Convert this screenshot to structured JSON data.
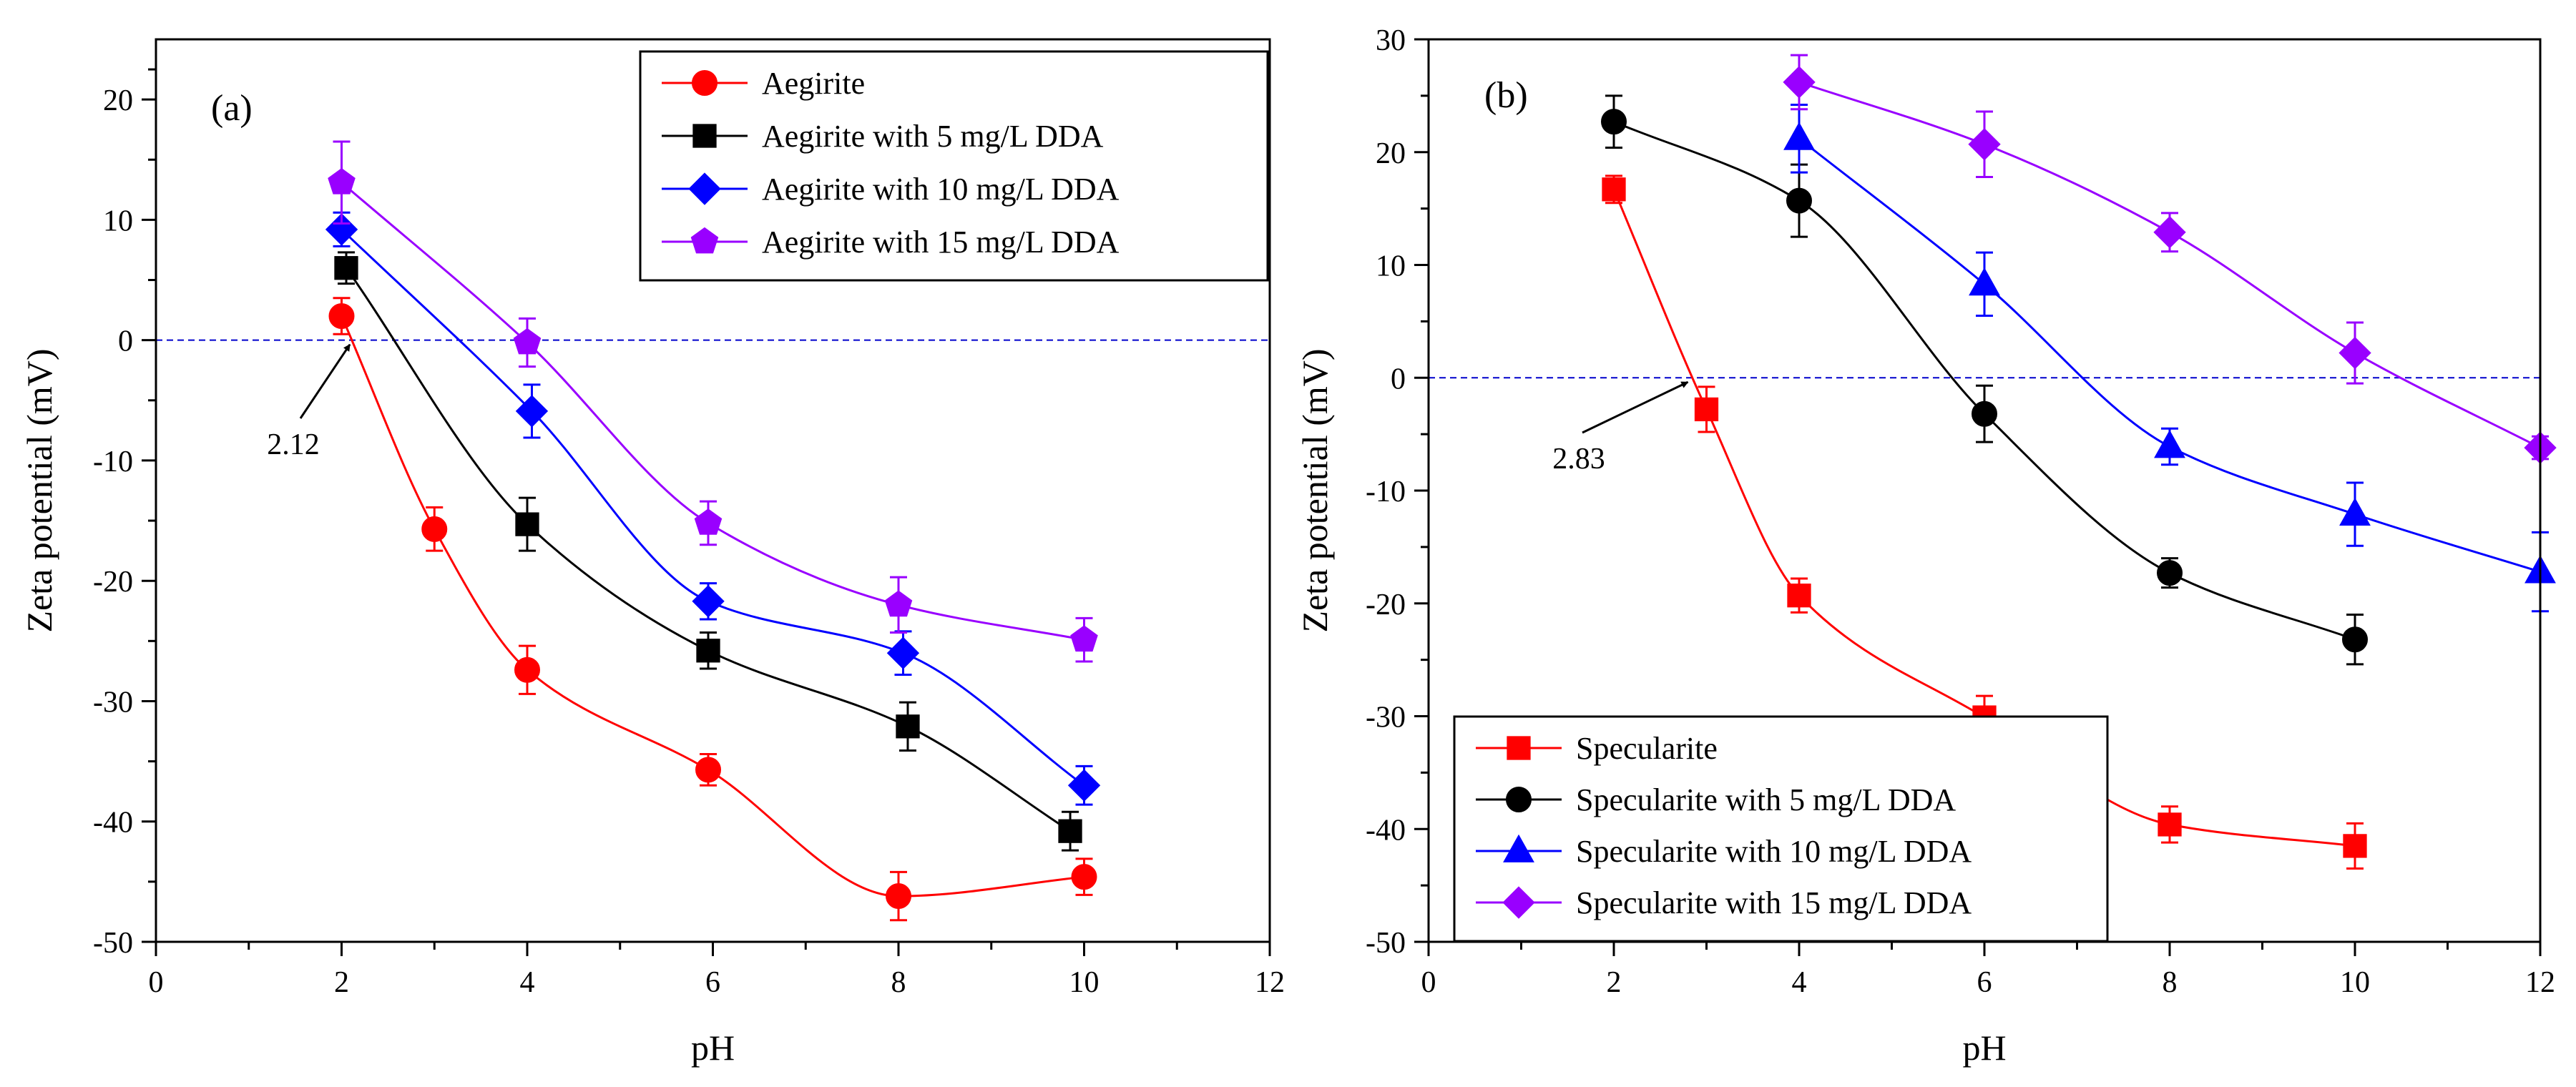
{
  "chart_data": [
    {
      "type": "line",
      "panel_label": "(a)",
      "xlabel": "pH",
      "ylabel": "Zeta potential (mV)",
      "xlim": [
        0,
        12
      ],
      "ylim": [
        -50,
        25
      ],
      "xticks": [
        0,
        2,
        4,
        6,
        8,
        10,
        12
      ],
      "yticks": [
        -50,
        -40,
        -30,
        -20,
        -10,
        0,
        10,
        20
      ],
      "reference_line_y": 0,
      "legend_position": "top-right",
      "annotation": {
        "text": "2.12",
        "x": 2.12,
        "y": 0
      },
      "series": [
        {
          "name": "Aegirite",
          "color": "#ff0000",
          "marker": "circle",
          "x": [
            2.0,
            3.0,
            4.0,
            5.95,
            8.0,
            10.0
          ],
          "y": [
            2.0,
            -15.7,
            -27.4,
            -35.7,
            -46.2,
            -44.6
          ],
          "err": [
            1.5,
            1.8,
            2.0,
            1.3,
            2.0,
            1.5
          ]
        },
        {
          "name": "Aegirite with 5 mg/L DDA",
          "color": "#000000",
          "marker": "square",
          "x": [
            2.05,
            4.0,
            5.95,
            8.1,
            9.85
          ],
          "y": [
            6.0,
            -15.3,
            -25.8,
            -32.1,
            -40.8
          ],
          "err": [
            1.3,
            2.2,
            1.5,
            2.0,
            1.6
          ]
        },
        {
          "name": "Aegirite with 10 mg/L DDA",
          "color": "#0000ff",
          "marker": "diamond",
          "x": [
            2.0,
            4.05,
            5.95,
            8.05,
            10.0
          ],
          "y": [
            9.2,
            -5.9,
            -21.7,
            -26.0,
            -37.0
          ],
          "err": [
            1.4,
            2.2,
            1.5,
            1.8,
            1.6
          ]
        },
        {
          "name": "Aegirite with 15 mg/L DDA",
          "color": "#9900ff",
          "marker": "pentagon",
          "x": [
            2.0,
            4.0,
            5.95,
            8.0,
            10.0
          ],
          "y": [
            13.1,
            -0.2,
            -15.2,
            -22.0,
            -24.9
          ],
          "err": [
            3.4,
            2.0,
            1.8,
            2.3,
            1.8
          ]
        }
      ]
    },
    {
      "type": "line",
      "panel_label": "(b)",
      "xlabel": "pH",
      "ylabel": "Zeta potential (mV)",
      "xlim": [
        0,
        12
      ],
      "ylim": [
        -50,
        30
      ],
      "xticks": [
        0,
        2,
        4,
        6,
        8,
        10,
        12
      ],
      "yticks": [
        -50,
        -40,
        -30,
        -20,
        -10,
        0,
        10,
        20,
        30
      ],
      "reference_line_y": 0,
      "legend_position": "bottom-left",
      "annotation": {
        "text": "2.83",
        "x": 2.83,
        "y": 0
      },
      "series": [
        {
          "name": "Specularite",
          "color": "#ff0000",
          "marker": "square",
          "x": [
            2.0,
            3.0,
            4.0,
            6.0,
            8.0,
            10.0
          ],
          "y": [
            16.7,
            -2.8,
            -19.3,
            -30.1,
            -39.6,
            -41.5
          ],
          "err": [
            1.2,
            2.0,
            1.5,
            1.9,
            1.6,
            2.0
          ]
        },
        {
          "name": "Specularite with 5 mg/L DDA",
          "color": "#000000",
          "marker": "circle",
          "x": [
            2.0,
            4.0,
            6.0,
            8.0,
            10.0
          ],
          "y": [
            22.7,
            15.7,
            -3.2,
            -17.3,
            -23.2
          ],
          "err": [
            2.3,
            3.2,
            2.5,
            1.3,
            2.2
          ]
        },
        {
          "name": "Specularite with 10 mg/L DDA",
          "color": "#0000ff",
          "marker": "triangle",
          "x": [
            4.0,
            6.0,
            8.0,
            10.0,
            12.0
          ],
          "y": [
            21.2,
            8.3,
            -6.1,
            -12.1,
            -17.2
          ],
          "err": [
            3.0,
            2.8,
            1.6,
            2.8,
            3.5
          ]
        },
        {
          "name": "Specularite with 15 mg/L DDA",
          "color": "#9900ff",
          "marker": "diamond",
          "x": [
            4.0,
            6.0,
            8.0,
            10.0,
            12.0
          ],
          "y": [
            26.2,
            20.7,
            12.9,
            2.2,
            -6.2
          ],
          "err": [
            2.4,
            2.9,
            1.7,
            2.7,
            1.0
          ]
        }
      ]
    }
  ]
}
